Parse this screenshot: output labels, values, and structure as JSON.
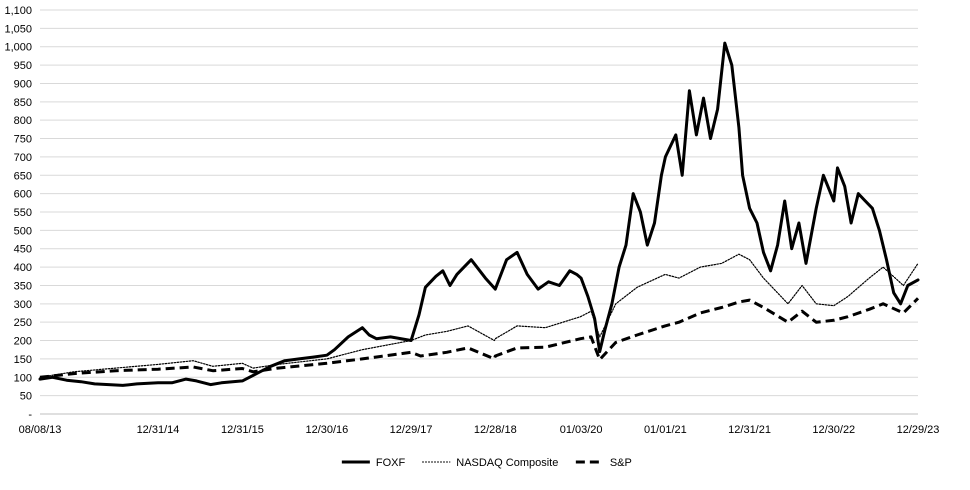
{
  "chart_data": {
    "type": "line",
    "title": "",
    "xlabel": "",
    "ylabel": "",
    "ylim": [
      0,
      1100
    ],
    "y_ticks": [
      {
        "value": 0,
        "label": "-"
      },
      {
        "value": 50,
        "label": "50"
      },
      {
        "value": 100,
        "label": "100"
      },
      {
        "value": 150,
        "label": "150"
      },
      {
        "value": 200,
        "label": "200"
      },
      {
        "value": 250,
        "label": "250"
      },
      {
        "value": 300,
        "label": "300"
      },
      {
        "value": 350,
        "label": "350"
      },
      {
        "value": 400,
        "label": "400"
      },
      {
        "value": 450,
        "label": "450"
      },
      {
        "value": 500,
        "label": "500"
      },
      {
        "value": 550,
        "label": "550"
      },
      {
        "value": 600,
        "label": "600"
      },
      {
        "value": 650,
        "label": "650"
      },
      {
        "value": 700,
        "label": "700"
      },
      {
        "value": 750,
        "label": "750"
      },
      {
        "value": 800,
        "label": "800"
      },
      {
        "value": 850,
        "label": "850"
      },
      {
        "value": 900,
        "label": "900"
      },
      {
        "value": 950,
        "label": "950"
      },
      {
        "value": 1000,
        "label": "1,000"
      },
      {
        "value": 1050,
        "label": "1,050"
      },
      {
        "value": 1100,
        "label": "1,100"
      }
    ],
    "x_range": [
      "2013-08-08",
      "2023-12-29"
    ],
    "x_ticks": [
      {
        "date": "2013-08-08",
        "label": "08/08/13"
      },
      {
        "date": "2014-12-31",
        "label": "12/31/14"
      },
      {
        "date": "2015-12-31",
        "label": "12/31/15"
      },
      {
        "date": "2016-12-30",
        "label": "12/30/16"
      },
      {
        "date": "2017-12-29",
        "label": "12/29/17"
      },
      {
        "date": "2018-12-28",
        "label": "12/28/18"
      },
      {
        "date": "2020-01-03",
        "label": "01/03/20"
      },
      {
        "date": "2021-01-01",
        "label": "01/01/21"
      },
      {
        "date": "2021-12-31",
        "label": "12/31/21"
      },
      {
        "date": "2022-12-30",
        "label": "12/30/22"
      },
      {
        "date": "2023-12-29",
        "label": "12/29/23"
      }
    ],
    "grid": "horizontal",
    "legend_position": "bottom",
    "series": [
      {
        "name": "FOXF",
        "style": "solid",
        "color": "#000000",
        "points": [
          [
            "2013-08-08",
            95
          ],
          [
            "2013-10-01",
            100
          ],
          [
            "2013-12-01",
            92
          ],
          [
            "2014-02-01",
            88
          ],
          [
            "2014-04-01",
            82
          ],
          [
            "2014-06-01",
            80
          ],
          [
            "2014-08-01",
            78
          ],
          [
            "2014-10-01",
            82
          ],
          [
            "2014-12-31",
            85
          ],
          [
            "2015-03-01",
            85
          ],
          [
            "2015-05-01",
            95
          ],
          [
            "2015-06-15",
            90
          ],
          [
            "2015-08-15",
            80
          ],
          [
            "2015-10-01",
            85
          ],
          [
            "2015-12-31",
            90
          ],
          [
            "2016-03-01",
            110
          ],
          [
            "2016-05-01",
            130
          ],
          [
            "2016-07-01",
            145
          ],
          [
            "2016-09-01",
            150
          ],
          [
            "2016-11-01",
            155
          ],
          [
            "2016-12-30",
            160
          ],
          [
            "2017-02-01",
            175
          ],
          [
            "2017-04-01",
            210
          ],
          [
            "2017-06-01",
            235
          ],
          [
            "2017-07-01",
            215
          ],
          [
            "2017-08-01",
            205
          ],
          [
            "2017-10-01",
            210
          ],
          [
            "2017-12-29",
            200
          ],
          [
            "2018-02-01",
            270
          ],
          [
            "2018-03-01",
            345
          ],
          [
            "2018-04-15",
            375
          ],
          [
            "2018-05-15",
            390
          ],
          [
            "2018-06-15",
            350
          ],
          [
            "2018-07-15",
            380
          ],
          [
            "2018-09-15",
            420
          ],
          [
            "2018-11-15",
            370
          ],
          [
            "2018-12-28",
            340
          ],
          [
            "2019-02-15",
            420
          ],
          [
            "2019-04-01",
            440
          ],
          [
            "2019-05-15",
            380
          ],
          [
            "2019-07-01",
            340
          ],
          [
            "2019-08-15",
            360
          ],
          [
            "2019-10-01",
            350
          ],
          [
            "2019-11-15",
            390
          ],
          [
            "2019-12-15",
            380
          ],
          [
            "2020-01-03",
            370
          ],
          [
            "2020-02-01",
            320
          ],
          [
            "2020-03-01",
            260
          ],
          [
            "2020-03-23",
            170
          ],
          [
            "2020-04-15",
            230
          ],
          [
            "2020-05-15",
            300
          ],
          [
            "2020-06-15",
            400
          ],
          [
            "2020-07-15",
            460
          ],
          [
            "2020-08-15",
            600
          ],
          [
            "2020-09-15",
            550
          ],
          [
            "2020-10-15",
            460
          ],
          [
            "2020-11-15",
            520
          ],
          [
            "2020-12-15",
            650
          ],
          [
            "2021-01-01",
            700
          ],
          [
            "2021-02-15",
            760
          ],
          [
            "2021-03-15",
            650
          ],
          [
            "2021-04-15",
            880
          ],
          [
            "2021-05-15",
            760
          ],
          [
            "2021-06-15",
            860
          ],
          [
            "2021-07-15",
            750
          ],
          [
            "2021-08-15",
            830
          ],
          [
            "2021-09-15",
            1010
          ],
          [
            "2021-10-15",
            950
          ],
          [
            "2021-11-15",
            780
          ],
          [
            "2021-12-01",
            650
          ],
          [
            "2021-12-31",
            560
          ],
          [
            "2022-02-01",
            520
          ],
          [
            "2022-03-01",
            440
          ],
          [
            "2022-04-01",
            390
          ],
          [
            "2022-05-01",
            460
          ],
          [
            "2022-06-01",
            580
          ],
          [
            "2022-07-01",
            450
          ],
          [
            "2022-08-01",
            520
          ],
          [
            "2022-09-01",
            410
          ],
          [
            "2022-10-15",
            560
          ],
          [
            "2022-11-15",
            650
          ],
          [
            "2022-12-30",
            580
          ],
          [
            "2023-01-15",
            670
          ],
          [
            "2023-02-15",
            620
          ],
          [
            "2023-03-15",
            520
          ],
          [
            "2023-04-15",
            600
          ],
          [
            "2023-05-15",
            580
          ],
          [
            "2023-06-15",
            560
          ],
          [
            "2023-07-15",
            500
          ],
          [
            "2023-08-15",
            420
          ],
          [
            "2023-09-15",
            330
          ],
          [
            "2023-10-15",
            300
          ],
          [
            "2023-11-15",
            350
          ],
          [
            "2023-12-29",
            365
          ]
        ]
      },
      {
        "name": "NASDAQ Composite",
        "style": "dotted",
        "color": "#000000",
        "points": [
          [
            "2013-08-08",
            100
          ],
          [
            "2014-01-01",
            115
          ],
          [
            "2014-07-01",
            125
          ],
          [
            "2014-12-31",
            135
          ],
          [
            "2015-06-01",
            145
          ],
          [
            "2015-08-25",
            130
          ],
          [
            "2015-12-31",
            138
          ],
          [
            "2016-02-15",
            125
          ],
          [
            "2016-06-01",
            135
          ],
          [
            "2016-12-30",
            150
          ],
          [
            "2017-06-01",
            175
          ],
          [
            "2017-12-29",
            200
          ],
          [
            "2018-03-01",
            215
          ],
          [
            "2018-06-01",
            225
          ],
          [
            "2018-09-01",
            240
          ],
          [
            "2018-12-24",
            200
          ],
          [
            "2018-12-28",
            205
          ],
          [
            "2019-04-01",
            240
          ],
          [
            "2019-08-01",
            235
          ],
          [
            "2019-12-31",
            265
          ],
          [
            "2020-02-15",
            280
          ],
          [
            "2020-03-23",
            210
          ],
          [
            "2020-06-01",
            300
          ],
          [
            "2020-09-01",
            345
          ],
          [
            "2020-12-31",
            380
          ],
          [
            "2021-03-01",
            370
          ],
          [
            "2021-06-01",
            400
          ],
          [
            "2021-09-01",
            410
          ],
          [
            "2021-11-15",
            435
          ],
          [
            "2021-12-31",
            420
          ],
          [
            "2022-03-01",
            370
          ],
          [
            "2022-06-15",
            300
          ],
          [
            "2022-08-15",
            350
          ],
          [
            "2022-10-15",
            300
          ],
          [
            "2022-12-30",
            295
          ],
          [
            "2023-03-01",
            320
          ],
          [
            "2023-06-01",
            370
          ],
          [
            "2023-07-31",
            400
          ],
          [
            "2023-10-27",
            350
          ],
          [
            "2023-12-29",
            410
          ]
        ]
      },
      {
        "name": "S&P",
        "style": "dashed",
        "color": "#000000",
        "points": [
          [
            "2013-08-08",
            100
          ],
          [
            "2014-01-01",
            110
          ],
          [
            "2014-07-01",
            118
          ],
          [
            "2014-12-31",
            122
          ],
          [
            "2015-06-01",
            128
          ],
          [
            "2015-08-25",
            118
          ],
          [
            "2015-12-31",
            124
          ],
          [
            "2016-02-15",
            115
          ],
          [
            "2016-06-01",
            125
          ],
          [
            "2016-12-30",
            138
          ],
          [
            "2017-06-01",
            150
          ],
          [
            "2017-12-29",
            168
          ],
          [
            "2018-02-08",
            158
          ],
          [
            "2018-06-01",
            168
          ],
          [
            "2018-09-01",
            180
          ],
          [
            "2018-12-24",
            150
          ],
          [
            "2018-12-28",
            158
          ],
          [
            "2019-04-01",
            180
          ],
          [
            "2019-08-01",
            182
          ],
          [
            "2019-12-31",
            205
          ],
          [
            "2020-02-15",
            210
          ],
          [
            "2020-03-23",
            148
          ],
          [
            "2020-06-01",
            195
          ],
          [
            "2020-09-01",
            215
          ],
          [
            "2020-12-31",
            240
          ],
          [
            "2021-03-01",
            250
          ],
          [
            "2021-06-01",
            275
          ],
          [
            "2021-09-01",
            290
          ],
          [
            "2021-11-15",
            305
          ],
          [
            "2021-12-31",
            310
          ],
          [
            "2022-03-01",
            290
          ],
          [
            "2022-06-15",
            250
          ],
          [
            "2022-08-15",
            280
          ],
          [
            "2022-10-15",
            250
          ],
          [
            "2022-12-30",
            255
          ],
          [
            "2023-03-01",
            265
          ],
          [
            "2023-06-01",
            285
          ],
          [
            "2023-07-31",
            300
          ],
          [
            "2023-10-27",
            275
          ],
          [
            "2023-12-29",
            315
          ]
        ]
      }
    ]
  }
}
